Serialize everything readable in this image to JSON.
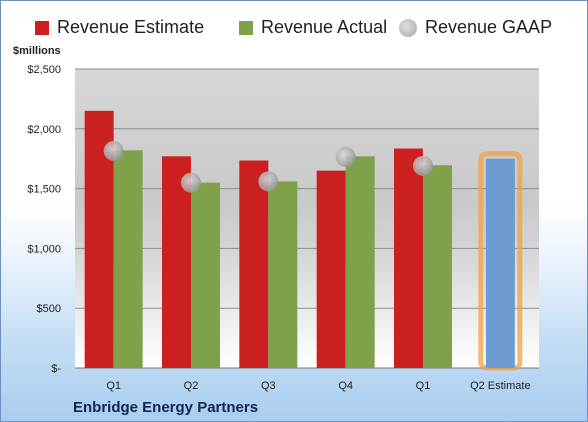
{
  "legend": [
    {
      "label": "Revenue Estimate",
      "color": "#cc2020",
      "shape": "square"
    },
    {
      "label": "Revenue Actual",
      "color": "#7ea14a",
      "shape": "square"
    },
    {
      "label": "Revenue GAAP",
      "color": "#a6a6a6",
      "shape": "circle"
    }
  ],
  "unit_label": "$millions",
  "company": "Enbridge Energy Partners",
  "chart_data": {
    "type": "bar",
    "categories": [
      "Q1",
      "Q2",
      "Q3",
      "Q4",
      "Q1",
      "Q2 Estimate"
    ],
    "series": [
      {
        "name": "Revenue Estimate",
        "values": [
          2150,
          1770,
          1735,
          1650,
          1835,
          1750
        ],
        "color": "#cc2020"
      },
      {
        "name": "Revenue Actual",
        "values": [
          1820,
          1550,
          1560,
          1770,
          1695,
          null
        ],
        "color": "#7ea14a"
      },
      {
        "name": "Revenue GAAP",
        "type": "scatter",
        "values": [
          1815,
          1550,
          1560,
          1765,
          1690,
          null
        ],
        "color": "#a6a6a6"
      }
    ],
    "highlight": {
      "category": "Q2 Estimate",
      "color": "#6c9bd1",
      "outline": "#f0a040"
    },
    "ylim": [
      0,
      2500
    ],
    "yticks": [
      0,
      500,
      1000,
      1500,
      2000,
      2500
    ],
    "ytick_labels": [
      "$-",
      "$500",
      "$1,000",
      "$1,500",
      "$2,000",
      "$2,500"
    ],
    "grid": true,
    "legend_position": "top"
  }
}
